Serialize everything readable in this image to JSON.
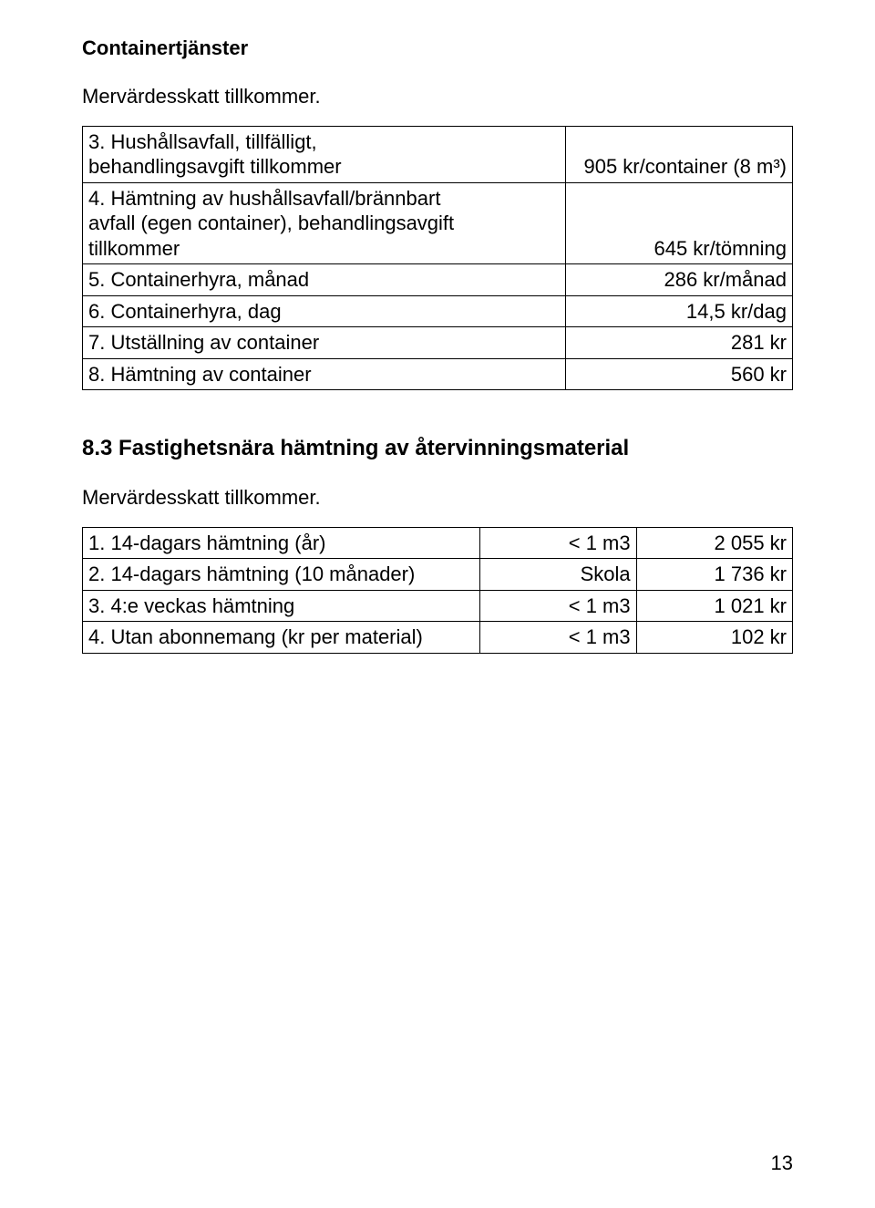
{
  "heading1": "Containertjänster",
  "vat_note": "Mervärdesskatt tillkommer.",
  "table1": {
    "col_widths": [
      "68%",
      "32%"
    ],
    "rows": [
      {
        "label": "3. Hushållsavfall, tillfälligt,\nbehandlingsavgift tillkommer",
        "value": "905 kr/container (8 m³)"
      },
      {
        "label": "4. Hämtning av hushållsavfall/brännbart\navfall (egen container), behandlingsavgift\ntillkommer",
        "value": "645 kr/tömning"
      },
      {
        "label": "5. Containerhyra, månad",
        "value": "286 kr/månad"
      },
      {
        "label": "6. Containerhyra, dag",
        "value": "14,5 kr/dag"
      },
      {
        "label": "7. Utställning av container",
        "value": "281 kr"
      },
      {
        "label": "8. Hämtning av container",
        "value": "560 kr"
      }
    ]
  },
  "heading2": "8.3  Fastighetsnära hämtning av återvinningsmaterial",
  "table2": {
    "col_widths": [
      "56%",
      "22%",
      "22%"
    ],
    "rows": [
      {
        "label": "1. 14-dagars hämtning (år)",
        "mid": "< 1 m3",
        "value": "2 055 kr"
      },
      {
        "label": "2. 14-dagars hämtning (10 månader)",
        "mid": "Skola",
        "value": "1 736 kr"
      },
      {
        "label": "3. 4:e veckas hämtning",
        "mid": "< 1 m3",
        "value": "1 021 kr"
      },
      {
        "label": "4. Utan abonnemang (kr per material)",
        "mid": "< 1 m3",
        "value": "102 kr"
      }
    ]
  },
  "page_number": "13"
}
